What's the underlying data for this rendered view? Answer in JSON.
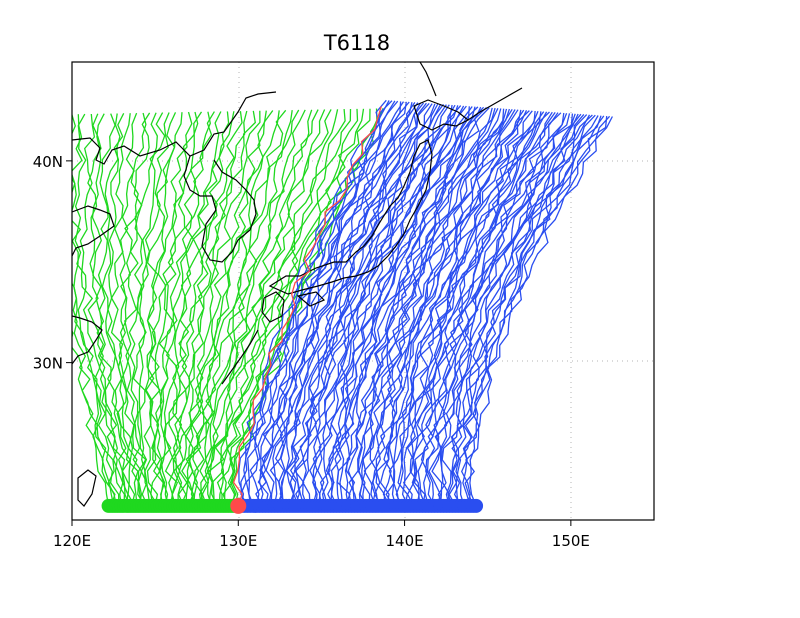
{
  "title": "T6118",
  "colors": {
    "west_tracks": "#1fd81f",
    "east_tracks": "#2a4ef0",
    "central_track": "#ff4a4a",
    "coastline": "#000000",
    "grid": "#b4b4b4"
  },
  "map": {
    "lon_range": [
      120,
      155
    ],
    "lat_range": [
      22.2,
      44.9
    ],
    "x_ticks": [
      "120E",
      "130E",
      "140E",
      "150E"
    ],
    "y_ticks": [
      "30N",
      "40N"
    ],
    "grid": "dotted"
  },
  "tracks": {
    "start_lat": 22.9,
    "west": {
      "start_lon": [
        122.2,
        129.8
      ],
      "end_lon": [
        119.6,
        138.7
      ],
      "end_lat": 42.6
    },
    "east": {
      "start_lon": [
        130.2,
        144.3
      ],
      "end_lon": [
        138.9,
        152.5
      ],
      "end_lat_west": 43.0,
      "end_lat_east": 42.2
    },
    "central": {
      "start": [
        130.0,
        22.9
      ],
      "end": [
        138.6,
        42.7
      ]
    }
  }
}
